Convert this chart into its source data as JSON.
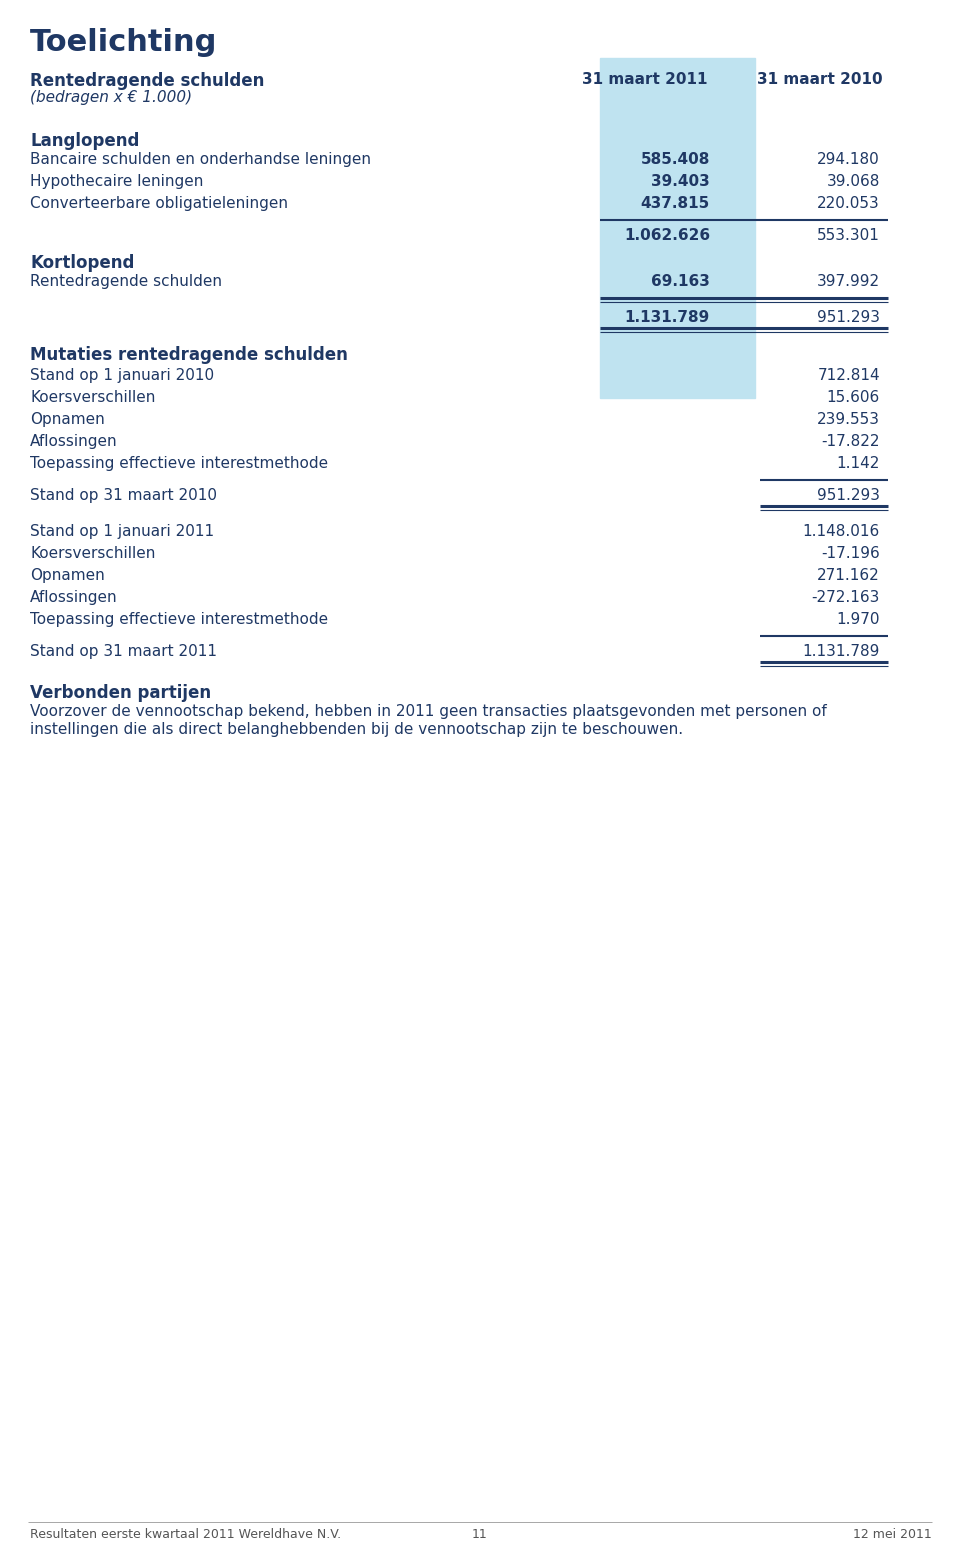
{
  "bg_color": "#ffffff",
  "title": "Toelichting",
  "dark_blue": "#1f3864",
  "light_blue_bg": "#bfe3f0",
  "col1_header": "31 maart 2011",
  "col2_header": "31 maart 2010",
  "section1_header": "Rentedragende schulden",
  "section1_sub": "(bedragen x € 1.000)",
  "langlopend_label": "Langlopend",
  "rows_langlopend": [
    [
      "Bancaire schulden en onderhandse leningen",
      "585.408",
      "294.180"
    ],
    [
      "Hypothecaire leningen",
      "39.403",
      "39.068"
    ],
    [
      "Converteerbare obligatieleningen",
      "437.815",
      "220.053"
    ]
  ],
  "subtotal_langlopend": [
    "",
    "1.062.626",
    "553.301"
  ],
  "kortlopend_label": "Kortlopend",
  "rows_kortlopend": [
    [
      "Rentedragende schulden",
      "69.163",
      "397.992"
    ]
  ],
  "total_row": [
    "",
    "1.131.789",
    "951.293"
  ],
  "mutaties_header": "Mutaties rentedragende schulden",
  "mutaties_2010": [
    [
      "Stand op 1 januari 2010",
      "712.814"
    ],
    [
      "Koersverschillen",
      "15.606"
    ],
    [
      "Opnamen",
      "239.553"
    ],
    [
      "Aflossingen",
      "-17.822"
    ],
    [
      "Toepassing effectieve interestmethode",
      "1.142"
    ]
  ],
  "stand_2010": [
    "Stand op 31 maart 2010",
    "951.293"
  ],
  "mutaties_2011": [
    [
      "Stand op 1 januari 2011",
      "1.148.016"
    ],
    [
      "Koersverschillen",
      "-17.196"
    ],
    [
      "Opnamen",
      "271.162"
    ],
    [
      "Aflossingen",
      "-272.163"
    ],
    [
      "Toepassing effectieve interestmethode",
      "1.970"
    ]
  ],
  "stand_2011": [
    "Stand op 31 maart 2011",
    "1.131.789"
  ],
  "verbonden_header": "Verbonden partijen",
  "verbonden_text1": "Voorzover de vennootschap bekend, hebben in 2011 geen transacties plaatsgevonden met personen of",
  "verbonden_text2": "instellingen die als direct belanghebbenden bij de vennootschap zijn te beschouwen.",
  "footer_left": "Resultaten eerste kwartaal 2011 Wereldhave N.V.",
  "footer_center": "11",
  "footer_right": "12 mei 2011"
}
